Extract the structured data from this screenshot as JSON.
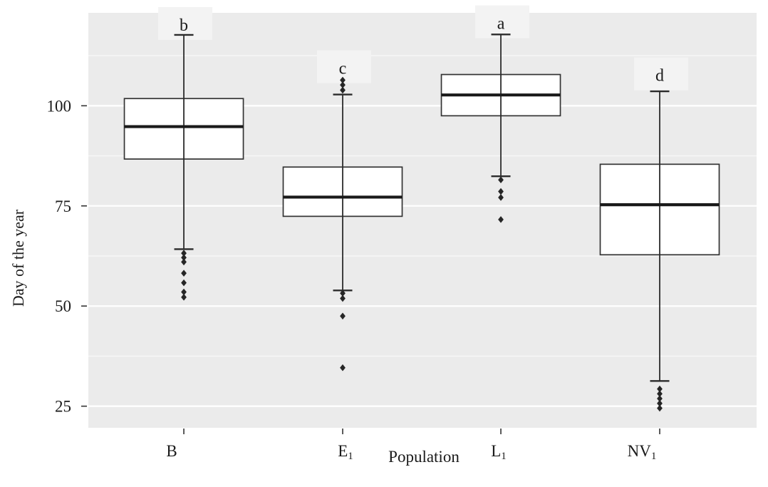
{
  "chart_data": {
    "type": "boxplot",
    "title": "",
    "xlabel": "Population",
    "ylabel": "Day of the year",
    "ylim": [
      19.6,
      123.2
    ],
    "yticks": [
      25,
      50,
      75,
      100
    ],
    "ytick_labels": [
      "25",
      "50",
      "75",
      "100"
    ],
    "minor_gridlines": [
      37.5,
      62.5,
      87.5,
      112.5
    ],
    "grid": "on",
    "legend": "none",
    "series": [
      {
        "label": "B",
        "label_sub": "",
        "letter": "b",
        "letter_value": 120.2,
        "q1": 86.7,
        "median": 94.8,
        "q3": 101.8,
        "whisker_low": 64.2,
        "whisker_high": 117.7,
        "outliers": [
          63.2,
          62.1,
          61.0,
          58.2,
          55.8,
          53.5,
          52.2
        ]
      },
      {
        "label": "E",
        "label_sub": "1",
        "letter": "c",
        "letter_value": 109.4,
        "q1": 72.4,
        "median": 77.2,
        "q3": 84.7,
        "whisker_low": 53.9,
        "whisker_high": 102.8,
        "outliers": [
          106.4,
          105.2,
          103.9,
          53.2,
          51.9,
          47.5,
          34.6
        ]
      },
      {
        "label": "L",
        "label_sub": "1",
        "letter": "a",
        "letter_value": 120.6,
        "q1": 97.5,
        "median": 102.7,
        "q3": 107.8,
        "whisker_low": 82.4,
        "whisker_high": 117.8,
        "outliers": [
          81.5,
          78.6,
          77.1,
          71.6
        ]
      },
      {
        "label": "NV",
        "label_sub": "1",
        "letter": "d",
        "letter_value": 107.6,
        "q1": 62.8,
        "median": 75.3,
        "q3": 85.4,
        "whisker_low": 31.3,
        "whisker_high": 103.6,
        "outliers": [
          29.3,
          28.1,
          26.9,
          25.7,
          24.5
        ]
      }
    ]
  },
  "colors": {
    "panel_bg": "#ebebeb",
    "grid_major": "#ffffff",
    "grid_minor": "rgba(255,255,255,0.65)",
    "box_fill": "#ffffff",
    "box_stroke": "#333333",
    "median": "#1a1a1a",
    "whisker": "#2b2b2b",
    "outlier": "#262626",
    "letter_patch": "#f3f3f3",
    "text": "#1a1a1a",
    "tick": "#333333"
  }
}
